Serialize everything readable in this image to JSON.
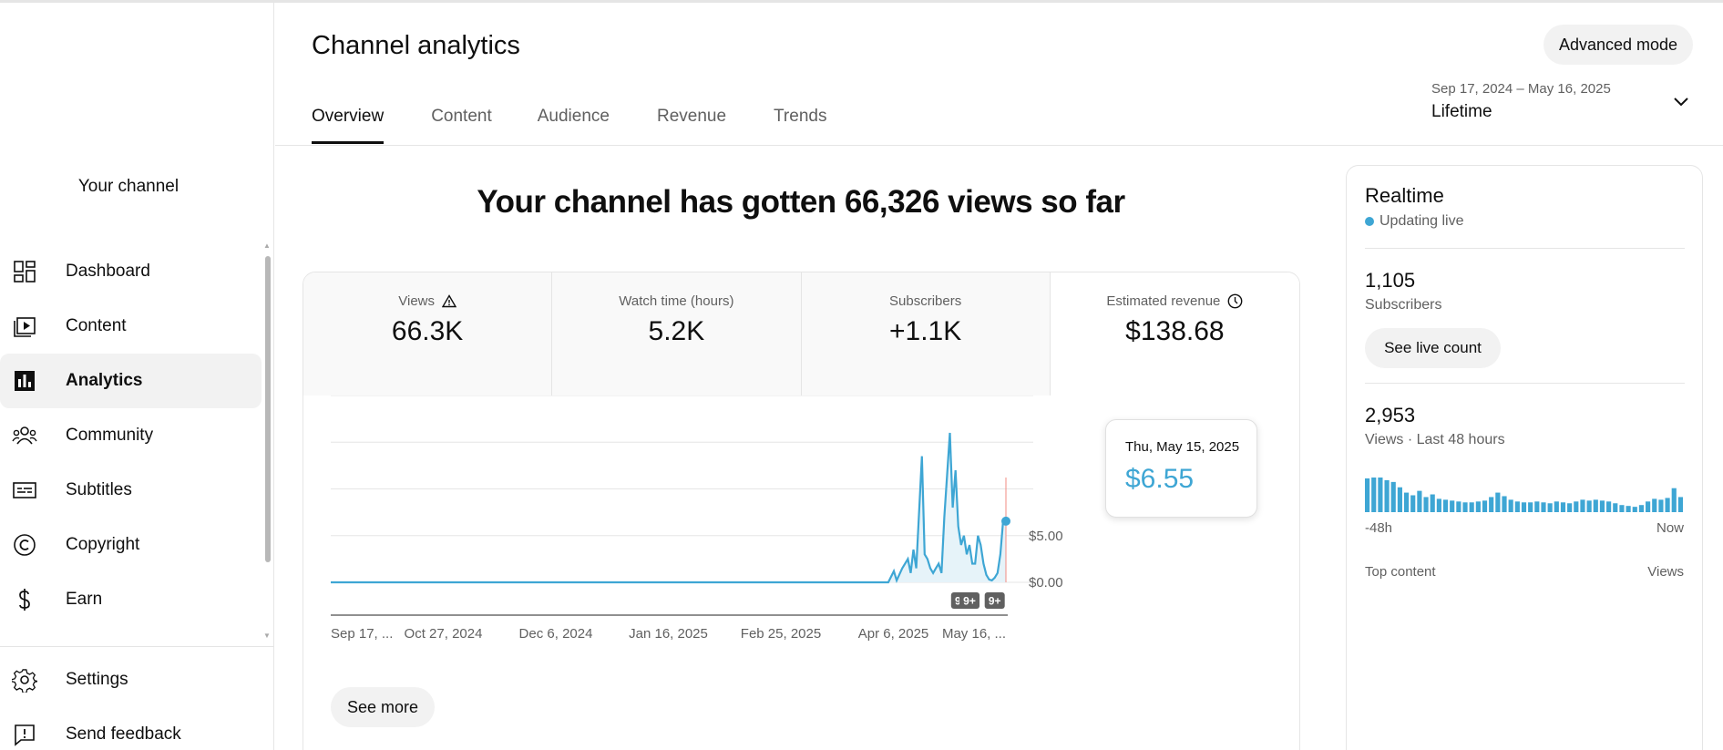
{
  "sidebar": {
    "channel_label": "Your channel",
    "items": [
      {
        "label": "Dashboard",
        "icon": "dashboard-icon"
      },
      {
        "label": "Content",
        "icon": "content-icon"
      },
      {
        "label": "Analytics",
        "icon": "analytics-icon",
        "active": true
      },
      {
        "label": "Community",
        "icon": "community-icon"
      },
      {
        "label": "Subtitles",
        "icon": "subtitles-icon"
      },
      {
        "label": "Copyright",
        "icon": "copyright-icon"
      },
      {
        "label": "Earn",
        "icon": "earn-icon"
      }
    ],
    "bottom_items": [
      {
        "label": "Settings",
        "icon": "gear-icon"
      },
      {
        "label": "Send feedback",
        "icon": "feedback-icon"
      }
    ]
  },
  "header": {
    "title": "Channel analytics",
    "advanced_mode": "Advanced mode",
    "tabs": [
      "Overview",
      "Content",
      "Audience",
      "Revenue",
      "Trends"
    ],
    "active_tab": "Overview",
    "date_range": {
      "sub": "Sep 17, 2024 – May 16, 2025",
      "main": "Lifetime"
    }
  },
  "headline": "Your channel has gotten 66,326 views so far",
  "metrics": [
    {
      "label": "Views",
      "value": "66.3K",
      "icon": "warning-icon"
    },
    {
      "label": "Watch time (hours)",
      "value": "5.2K"
    },
    {
      "label": "Subscribers",
      "value": "+1.1K"
    },
    {
      "label": "Estimated revenue",
      "value": "$138.68",
      "icon": "clock-icon"
    }
  ],
  "tooltip": {
    "date": "Thu, May 15, 2025",
    "value": "$6.55"
  },
  "see_more": "See more",
  "chart_data": {
    "type": "line",
    "series_color": "#3ea6d4",
    "x_tick_labels": [
      "Sep 17, ...",
      "Oct 27, 2024",
      "Dec 6, 2024",
      "Jan 16, 2025",
      "Feb 25, 2025",
      "Apr 6, 2025",
      "May 16, ..."
    ],
    "y_tick_labels": [
      "$0.00",
      "$5.00"
    ],
    "ylim": [
      0,
      20
    ],
    "x_start": "2024-09-17",
    "x_end": "2025-05-16",
    "points": [
      [
        "2024-09-17",
        0
      ],
      [
        "2025-04-04",
        0
      ],
      [
        "2025-04-06",
        1.2
      ],
      [
        "2025-04-07",
        0.2
      ],
      [
        "2025-04-09",
        1.5
      ],
      [
        "2025-04-11",
        2.5
      ],
      [
        "2025-04-12",
        1.0
      ],
      [
        "2025-04-13",
        3.5
      ],
      [
        "2025-04-14",
        1.5
      ],
      [
        "2025-04-16",
        13.5
      ],
      [
        "2025-04-17",
        3.0
      ],
      [
        "2025-04-18",
        2.5
      ],
      [
        "2025-04-19",
        1.5
      ],
      [
        "2025-04-20",
        1.0
      ],
      [
        "2025-04-21",
        1.5
      ],
      [
        "2025-04-22",
        2.0
      ],
      [
        "2025-04-23",
        1.0
      ],
      [
        "2025-04-24",
        7.0
      ],
      [
        "2025-04-26",
        16.0
      ],
      [
        "2025-04-27",
        8.0
      ],
      [
        "2025-04-28",
        12.0
      ],
      [
        "2025-04-29",
        6.0
      ],
      [
        "2025-04-30",
        4.0
      ],
      [
        "2025-05-01",
        5.0
      ],
      [
        "2025-05-02",
        3.0
      ],
      [
        "2025-05-03",
        4.0
      ],
      [
        "2025-05-04",
        2.0
      ],
      [
        "2025-05-05",
        2.0
      ],
      [
        "2025-05-06",
        5.0
      ],
      [
        "2025-05-07",
        4.0
      ],
      [
        "2025-05-08",
        2.0
      ],
      [
        "2025-05-09",
        0.8
      ],
      [
        "2025-05-10",
        0.3
      ],
      [
        "2025-05-11",
        0.2
      ],
      [
        "2025-05-12",
        0.5
      ],
      [
        "2025-05-13",
        1.0
      ],
      [
        "2025-05-14",
        3.0
      ],
      [
        "2025-05-15",
        6.55
      ],
      [
        "2025-05-16",
        6.55
      ]
    ],
    "badges": [
      {
        "date": "2025-04-30",
        "label": "9+"
      },
      {
        "date": "2025-05-03",
        "label": "9+"
      },
      {
        "date": "2025-05-12",
        "label": "9+"
      }
    ]
  },
  "realtime": {
    "title": "Realtime",
    "status": "Updating live",
    "subscribers": {
      "value": "1,105",
      "label": "Subscribers"
    },
    "live_count_button": "See live count",
    "views": {
      "value": "2,953",
      "label": "Views · Last 48 hours"
    },
    "bars": [
      38,
      39,
      39,
      36,
      34,
      28,
      22,
      19,
      24,
      17,
      20,
      15,
      14,
      13,
      12,
      11,
      11,
      12,
      13,
      17,
      22,
      18,
      14,
      12,
      11,
      11,
      12,
      11,
      10,
      12,
      11,
      10,
      12,
      14,
      13,
      14,
      13,
      12,
      10,
      8,
      7,
      6,
      8,
      12,
      15,
      14,
      16,
      27,
      17
    ],
    "axis_left": "-48h",
    "axis_right": "Now",
    "top_content": "Top content",
    "top_content_views": "Views"
  }
}
